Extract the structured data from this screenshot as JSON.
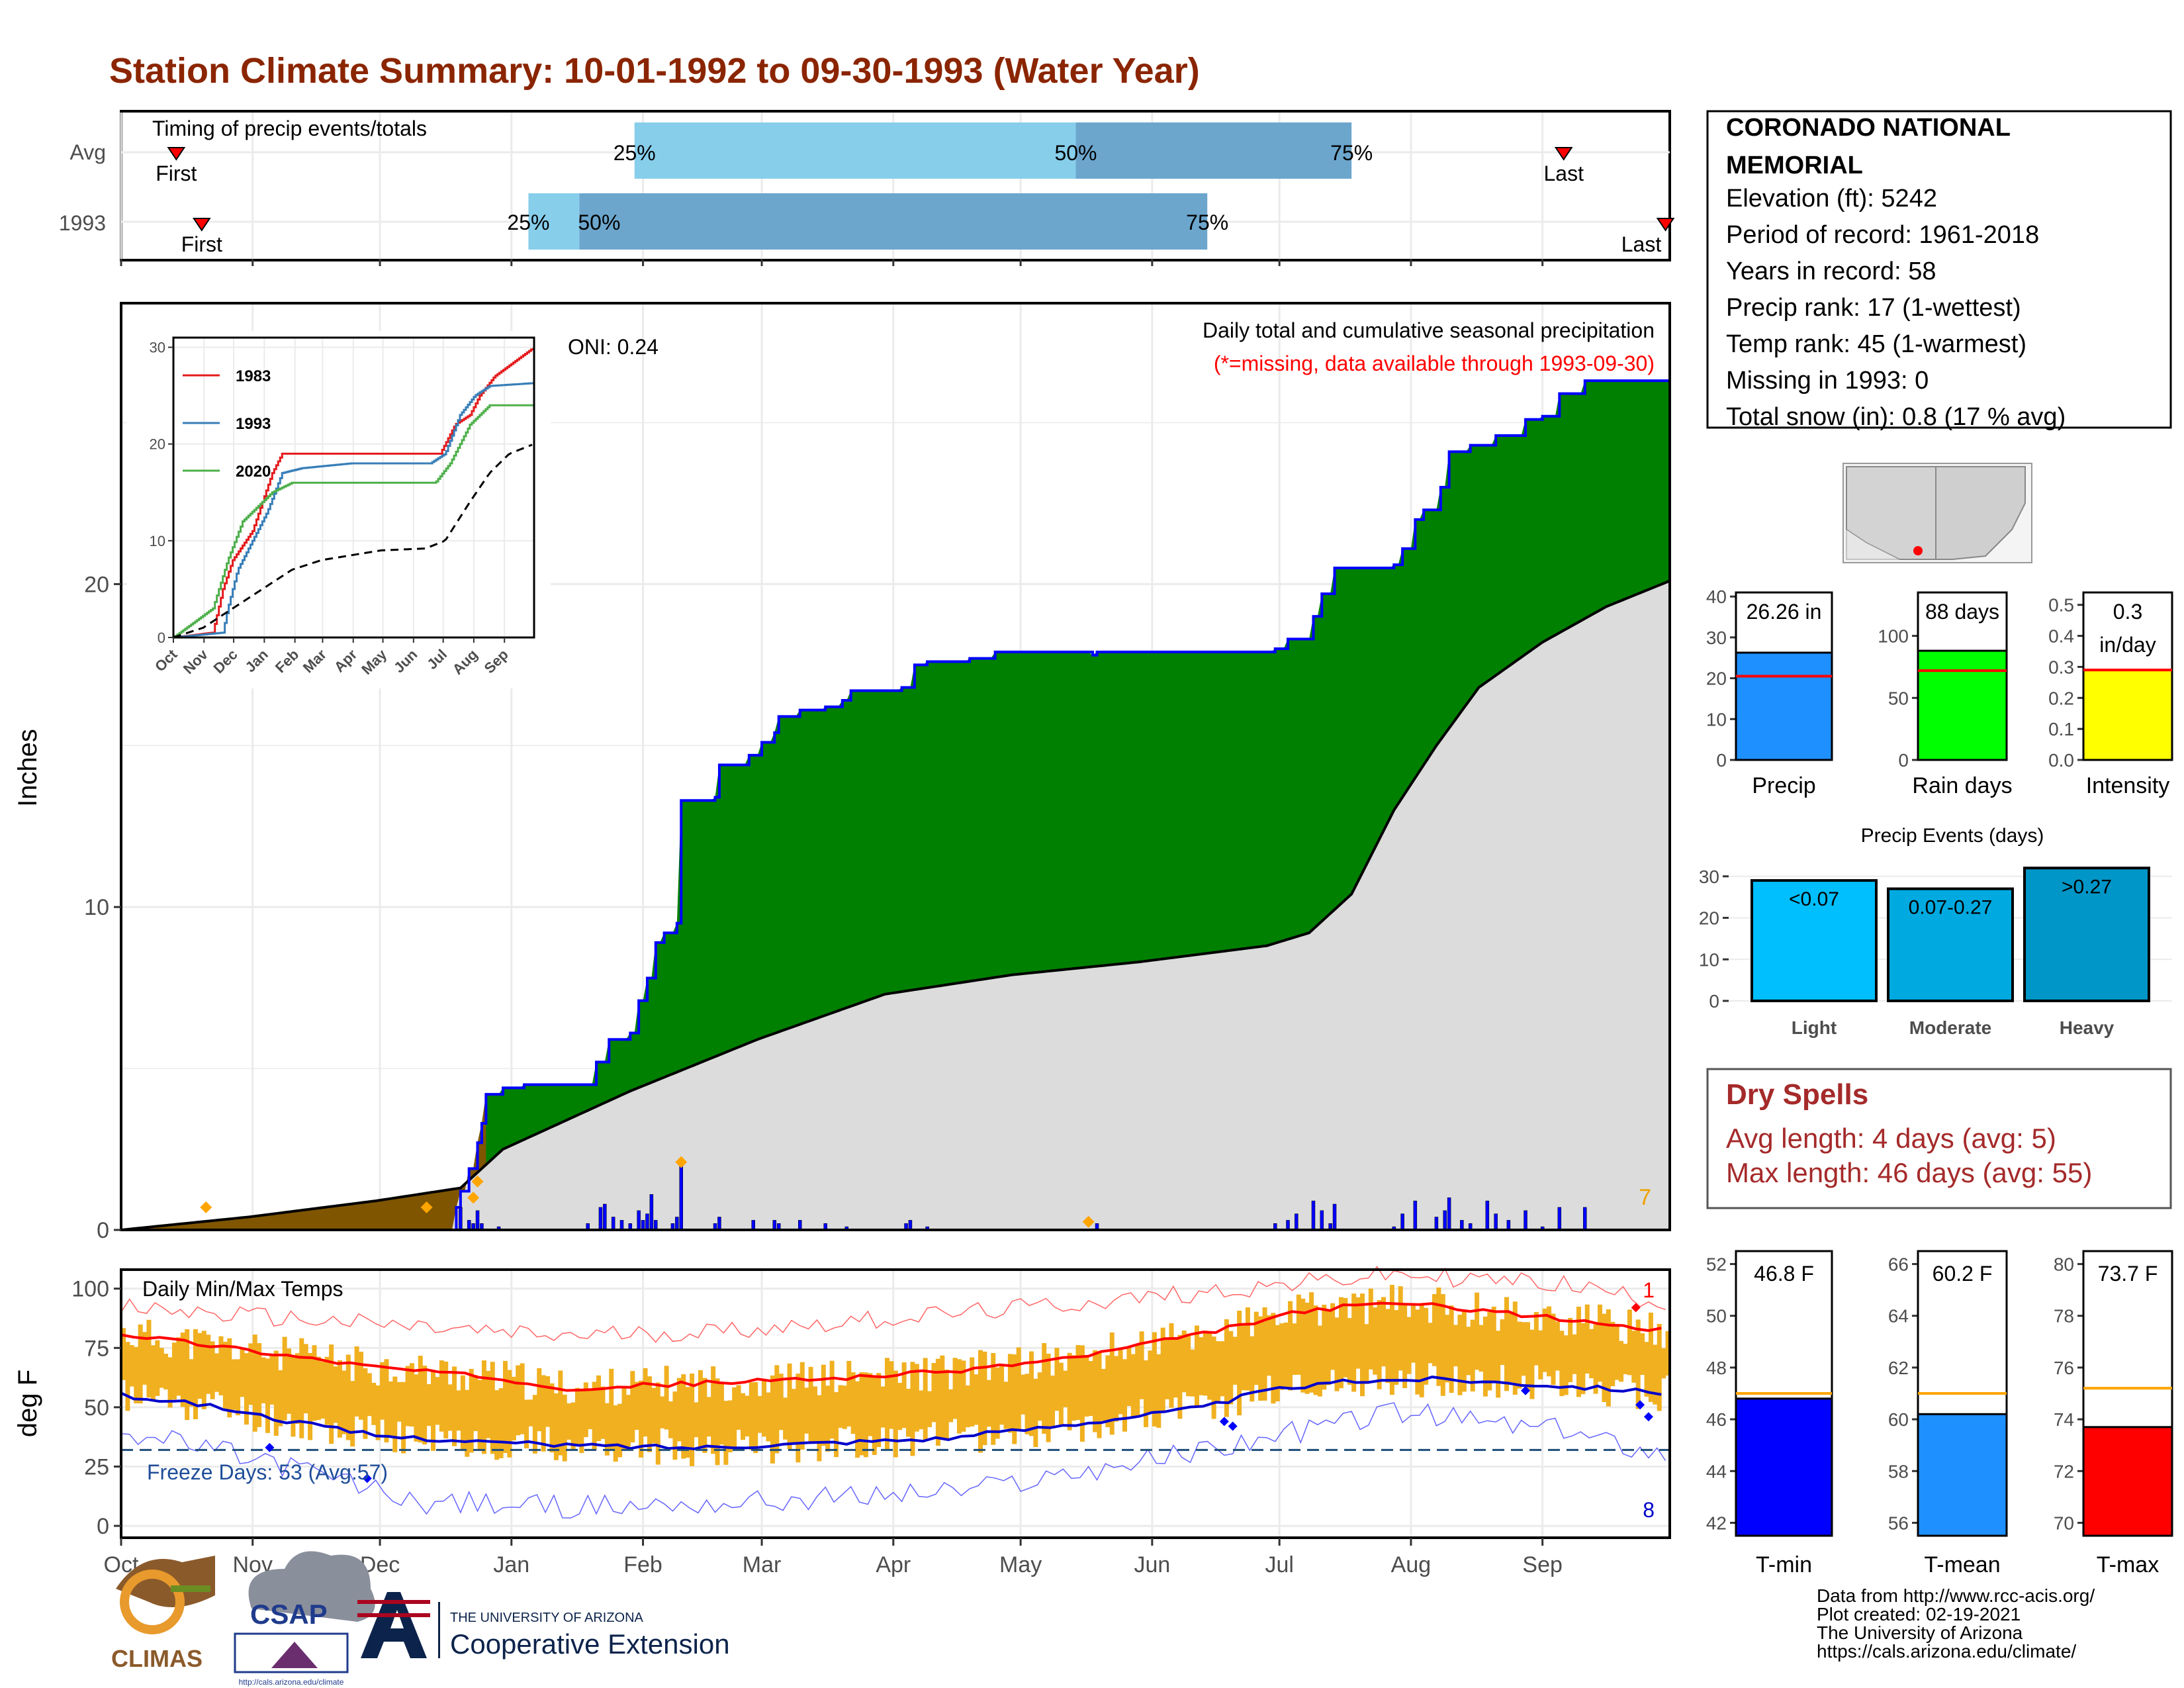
{
  "title": "Station Climate Summary: 10-01-1992 to 09-30-1993 (Water Year)",
  "colors": {
    "title": "#8B2500",
    "green": "#008000",
    "brown": "#7F5500",
    "grey": "#DCDCDC",
    "blue": "#0000FF",
    "orange": "#F0B020",
    "red": "#FF0000",
    "light_blue": "#87CEEB",
    "mid_blue": "#6CA6CD",
    "dry_red": "#A52A2A"
  },
  "timing": {
    "panel_label": "Timing of precip events/totals",
    "rows": [
      {
        "label": "Avg",
        "first": "First",
        "last": "Last",
        "p25": "25%",
        "p50": "50%",
        "p75": "75%",
        "first_day": 13,
        "p25_day": 121,
        "p50_day": 225,
        "p75_day": 290,
        "last_day": 340
      },
      {
        "label": "1993",
        "first": "First",
        "last": "Last",
        "p25": "25%",
        "p50": "50%",
        "p75": "75%",
        "first_day": 19,
        "p25_day": 96,
        "p50_day": 108,
        "p75_day": 256,
        "last_day": 367
      }
    ]
  },
  "station": {
    "name_line1": "CORONADO NATIONAL",
    "name_line2": "MEMORIAL",
    "elevation": "Elevation (ft): 5242",
    "period": "Period of record: 1961-2018",
    "years": "Years in record: 58",
    "precip_rank": "Precip rank: 17 (1-wettest)",
    "temp_rank": "Temp rank: 45 (1-warmest)",
    "missing": "Missing in 1993: 0",
    "snow": "Total snow (in): 0.8 (17 % avg)"
  },
  "main_precip": {
    "ylabel": "Inches",
    "title": "Daily total and cumulative seasonal precipitation",
    "missing_note": "(*=missing, data available through 1993-09-30)",
    "oni": "ONI: 0.24",
    "count_label": "7",
    "yticks": [
      "0",
      "10",
      "20"
    ]
  },
  "inset": {
    "xticks": [
      "Oct",
      "Nov",
      "Dec",
      "Jan",
      "Feb",
      "Mar",
      "Apr",
      "May",
      "Jun",
      "Jul",
      "Aug",
      "Sep"
    ],
    "yticks": [
      "0",
      "10",
      "20",
      "30"
    ],
    "legend": [
      {
        "name": "1983",
        "color": "#E41A1C"
      },
      {
        "name": "1993",
        "color": "#377EB8"
      },
      {
        "name": "2020",
        "color": "#4DAF4A"
      }
    ]
  },
  "temps": {
    "panel_label": "Daily Min/Max Temps",
    "ylabel": "deg F",
    "freeze": "Freeze Days: 53 (Avg:57)",
    "count_hi": "1",
    "count_lo": "8",
    "yticks": [
      "0",
      "25",
      "50",
      "75",
      "100"
    ]
  },
  "x_months": [
    "Oct",
    "Nov",
    "Dec",
    "Jan",
    "Feb",
    "Mar",
    "Apr",
    "May",
    "Jun",
    "Jul",
    "Aug",
    "Sep"
  ],
  "summary_bars": {
    "precip": {
      "label": "Precip",
      "value_label": "26.26 in",
      "value": 26.26,
      "avg": 20.5,
      "yticks": [
        "0",
        "10",
        "20",
        "30",
        "40"
      ],
      "color": "#1E90FF"
    },
    "rain_days": {
      "label": "Rain days",
      "value_label": "88 days",
      "value": 88,
      "avg": 72,
      "yticks": [
        "0",
        "50",
        "100"
      ],
      "color": "#00FF00"
    },
    "intensity": {
      "label": "Intensity",
      "value_label_1": "0.3",
      "value_label_2": "in/day",
      "value": 0.29,
      "avg": 0.29,
      "yticks": [
        "0.0",
        "0.1",
        "0.2",
        "0.3",
        "0.4",
        "0.5"
      ],
      "color": "#FFFF00"
    }
  },
  "precip_events": {
    "title": "Precip Events (days)",
    "yticks": [
      "0",
      "10",
      "20",
      "30"
    ],
    "bars": [
      {
        "label": "Light",
        "value_label": "<0.07",
        "value": 29,
        "color": "#00BFFF"
      },
      {
        "label": "Moderate",
        "value_label": "0.07-0.27",
        "value": 27,
        "color": "#00AAE0"
      },
      {
        "label": "Heavy",
        "value_label": ">0.27",
        "value": 32,
        "color": "#0096C8"
      }
    ]
  },
  "dry_spells": {
    "title": "Dry Spells",
    "avg_length": "Avg length: 4 days (avg: 5)",
    "max_length": "Max length: 46 days (avg: 55)"
  },
  "temp_bars": [
    {
      "label": "T-min",
      "value_label": "46.8 F",
      "value": 46.8,
      "avg": 47.0,
      "ymin": 41.5,
      "ymax": 52.5,
      "yticks": [
        "42",
        "44",
        "46",
        "48",
        "50",
        "52"
      ],
      "color": "#0000FF"
    },
    {
      "label": "T-mean",
      "value_label": "60.2 F",
      "value": 60.2,
      "avg": 61.0,
      "ymin": 55.5,
      "ymax": 66.5,
      "yticks": [
        "56",
        "58",
        "60",
        "62",
        "64",
        "66"
      ],
      "color": "#1E90FF"
    },
    {
      "label": "T-max",
      "value_label": "73.7 F",
      "value": 73.7,
      "avg": 75.2,
      "ymin": 69.5,
      "ymax": 80.5,
      "yticks": [
        "70",
        "72",
        "74",
        "76",
        "78",
        "80"
      ],
      "color": "#FF0000"
    }
  ],
  "credits": {
    "line1": "Data from http://www.rcc-acis.org/",
    "line2": "Plot created: 02-19-2021",
    "line3": "The University of Arizona",
    "line4": "https://cals.arizona.edu/climate/"
  },
  "logos": {
    "climas": "CLIMAS",
    "csap": "CSAP",
    "csap_url": "http://cals.arizona.edu/climate",
    "ua_small": "THE UNIVERSITY OF ARIZONA",
    "ua_big": "Cooperative Extension"
  },
  "chart_data": [
    {
      "type": "area",
      "title": "Daily total and cumulative seasonal precipitation",
      "ylabel": "Inches",
      "ylim": [
        0,
        28
      ],
      "cumulative_1993_knots": [
        [
          0,
          0
        ],
        [
          79,
          0.7
        ],
        [
          80,
          1.2
        ],
        [
          82,
          1.9
        ],
        [
          84,
          2.7
        ],
        [
          85,
          3.3
        ],
        [
          86,
          4.2
        ],
        [
          90,
          4.4
        ],
        [
          95,
          4.5
        ],
        [
          110,
          4.5
        ],
        [
          112,
          5.2
        ],
        [
          115,
          5.9
        ],
        [
          120,
          6.1
        ],
        [
          122,
          7.1
        ],
        [
          124,
          7.8
        ],
        [
          126,
          8.9
        ],
        [
          128,
          9.2
        ],
        [
          131,
          9.5
        ],
        [
          132,
          13.3
        ],
        [
          140,
          13.4
        ],
        [
          141,
          14.4
        ],
        [
          148,
          14.7
        ],
        [
          151,
          15.1
        ],
        [
          154,
          15.4
        ],
        [
          155,
          15.9
        ],
        [
          158,
          15.9
        ],
        [
          160,
          16.1
        ],
        [
          166,
          16.2
        ],
        [
          170,
          16.4
        ],
        [
          172,
          16.7
        ],
        [
          184,
          16.8
        ],
        [
          187,
          17.5
        ],
        [
          190,
          17.6
        ],
        [
          200,
          17.7
        ],
        [
          206,
          17.9
        ],
        [
          229,
          17.8
        ],
        [
          230,
          17.9
        ],
        [
          272,
          18.0
        ],
        [
          275,
          18.3
        ],
        [
          281,
          19.0
        ],
        [
          283,
          19.7
        ],
        [
          286,
          20.5
        ],
        [
          300,
          20.6
        ],
        [
          302,
          21.1
        ],
        [
          305,
          22.0
        ],
        [
          307,
          22.3
        ],
        [
          311,
          23.0
        ],
        [
          313,
          24.1
        ],
        [
          318,
          24.3
        ],
        [
          324,
          24.6
        ],
        [
          331,
          25.1
        ],
        [
          335,
          25.2
        ],
        [
          339,
          25.9
        ],
        [
          345,
          26.3
        ],
        [
          365,
          26.3
        ]
      ],
      "average_cumulative_knots": [
        [
          0,
          0
        ],
        [
          30,
          0.4
        ],
        [
          60,
          0.9
        ],
        [
          80,
          1.3
        ],
        [
          90,
          2.5
        ],
        [
          120,
          4.3
        ],
        [
          150,
          5.9
        ],
        [
          180,
          7.3
        ],
        [
          210,
          7.9
        ],
        [
          240,
          8.3
        ],
        [
          270,
          8.8
        ],
        [
          280,
          9.2
        ],
        [
          290,
          10.4
        ],
        [
          300,
          13.0
        ],
        [
          310,
          15.0
        ],
        [
          320,
          16.8
        ],
        [
          335,
          18.2
        ],
        [
          350,
          19.3
        ],
        [
          365,
          20.1
        ]
      ],
      "daily_precip": [
        [
          80,
          0.7
        ],
        [
          82,
          0.3
        ],
        [
          83,
          0.2
        ],
        [
          84,
          0.6
        ],
        [
          85,
          0.2
        ],
        [
          89,
          0.1
        ],
        [
          110,
          0.2
        ],
        [
          113,
          0.7
        ],
        [
          114,
          0.8
        ],
        [
          116,
          0.4
        ],
        [
          118,
          0.3
        ],
        [
          120,
          0.2
        ],
        [
          122,
          0.6
        ],
        [
          123,
          0.3
        ],
        [
          124,
          0.5
        ],
        [
          125,
          1.1
        ],
        [
          126,
          0.3
        ],
        [
          130,
          0.2
        ],
        [
          131,
          0.4
        ],
        [
          132,
          0.4
        ],
        [
          132,
          2.0
        ],
        [
          140,
          0.2
        ],
        [
          141,
          0.4
        ],
        [
          149,
          0.3
        ],
        [
          154,
          0.3
        ],
        [
          155,
          0.2
        ],
        [
          160,
          0.3
        ],
        [
          166,
          0.2
        ],
        [
          171,
          0.1
        ],
        [
          185,
          0.2
        ],
        [
          186,
          0.3
        ],
        [
          190,
          0.1
        ],
        [
          230,
          0.2
        ],
        [
          272,
          0.2
        ],
        [
          275,
          0.3
        ],
        [
          277,
          0.5
        ],
        [
          281,
          0.9
        ],
        [
          283,
          0.6
        ],
        [
          285,
          0.2
        ],
        [
          286,
          0.8
        ],
        [
          300,
          0.1
        ],
        [
          302,
          0.5
        ],
        [
          305,
          0.9
        ],
        [
          310,
          0.4
        ],
        [
          312,
          0.6
        ],
        [
          313,
          1.0
        ],
        [
          316,
          0.3
        ],
        [
          318,
          0.2
        ],
        [
          322,
          0.9
        ],
        [
          324,
          0.5
        ],
        [
          327,
          0.3
        ],
        [
          331,
          0.6
        ],
        [
          335,
          0.1
        ],
        [
          339,
          0.7
        ],
        [
          345,
          0.7
        ]
      ]
    },
    {
      "type": "line",
      "title": "",
      "categories": [
        "Oct",
        "Nov",
        "Dec",
        "Jan",
        "Feb",
        "Mar",
        "Apr",
        "May",
        "Jun",
        "Jul",
        "Aug",
        "Sep"
      ],
      "ylim": [
        0,
        30
      ],
      "series": [
        {
          "name": "1983",
          "values_by_day": [
            [
              0,
              0
            ],
            [
              40,
              0.5
            ],
            [
              50,
              5
            ],
            [
              60,
              8
            ],
            [
              80,
              11
            ],
            [
              90,
              14
            ],
            [
              100,
              17
            ],
            [
              110,
              19
            ],
            [
              120,
              19
            ],
            [
              200,
              19
            ],
            [
              270,
              19
            ],
            [
              285,
              22
            ],
            [
              300,
              23
            ],
            [
              310,
              25
            ],
            [
              325,
              27
            ],
            [
              365,
              30
            ]
          ]
        },
        {
          "name": "1993",
          "values_by_day": [
            [
              0,
              0
            ],
            [
              50,
              0.5
            ],
            [
              55,
              3
            ],
            [
              65,
              7
            ],
            [
              80,
              10
            ],
            [
              95,
              13
            ],
            [
              110,
              17
            ],
            [
              130,
              17.5
            ],
            [
              180,
              18
            ],
            [
              260,
              18
            ],
            [
              275,
              19
            ],
            [
              290,
              23
            ],
            [
              305,
              25
            ],
            [
              320,
              26
            ],
            [
              365,
              26.3
            ]
          ]
        },
        {
          "name": "2020",
          "values_by_day": [
            [
              0,
              0
            ],
            [
              40,
              3
            ],
            [
              55,
              8
            ],
            [
              70,
              12
            ],
            [
              90,
              14
            ],
            [
              100,
              15
            ],
            [
              120,
              16
            ],
            [
              200,
              16
            ],
            [
              265,
              16
            ],
            [
              280,
              18
            ],
            [
              300,
              22
            ],
            [
              320,
              24
            ],
            [
              340,
              24
            ],
            [
              365,
              24
            ]
          ]
        },
        {
          "name": "",
          "values_by_day": [
            [
              0,
              0
            ],
            [
              30,
              1
            ],
            [
              60,
              3
            ],
            [
              90,
              5
            ],
            [
              120,
              7
            ],
            [
              150,
              8
            ],
            [
              180,
              8.5
            ],
            [
              210,
              9
            ],
            [
              255,
              9.2
            ],
            [
              275,
              10
            ],
            [
              300,
              14
            ],
            [
              320,
              17
            ],
            [
              340,
              19
            ],
            [
              365,
              20
            ]
          ]
        }
      ]
    },
    {
      "type": "area",
      "title": "Daily Min/Max Temps",
      "ylabel": "deg F",
      "ylim": [
        -5,
        108
      ],
      "freeze_line": 32,
      "avg_tmax_knots": [
        [
          0,
          81
        ],
        [
          30,
          74
        ],
        [
          60,
          67
        ],
        [
          90,
          62
        ],
        [
          105,
          58
        ],
        [
          135,
          60
        ],
        [
          165,
          62
        ],
        [
          195,
          65
        ],
        [
          225,
          71
        ],
        [
          255,
          81
        ],
        [
          270,
          87
        ],
        [
          280,
          91
        ],
        [
          300,
          94
        ],
        [
          315,
          92
        ],
        [
          345,
          86
        ],
        [
          365,
          82
        ]
      ],
      "avg_tmin_knots": [
        [
          0,
          55
        ],
        [
          20,
          51
        ],
        [
          40,
          44
        ],
        [
          60,
          38
        ],
        [
          90,
          35
        ],
        [
          105,
          34
        ],
        [
          135,
          33
        ],
        [
          165,
          35
        ],
        [
          195,
          37
        ],
        [
          225,
          43
        ],
        [
          255,
          50
        ],
        [
          270,
          57
        ],
        [
          290,
          61
        ],
        [
          310,
          62
        ],
        [
          330,
          60
        ],
        [
          350,
          58
        ],
        [
          365,
          56
        ]
      ],
      "record_max_knots": [
        [
          0,
          92
        ],
        [
          60,
          85
        ],
        [
          100,
          80
        ],
        [
          140,
          82
        ],
        [
          200,
          90
        ],
        [
          240,
          96
        ],
        [
          300,
          106
        ],
        [
          340,
          102
        ],
        [
          365,
          94
        ]
      ],
      "record_min_knots": [
        [
          0,
          40
        ],
        [
          40,
          25
        ],
        [
          70,
          10
        ],
        [
          110,
          8
        ],
        [
          150,
          10
        ],
        [
          200,
          15
        ],
        [
          250,
          30
        ],
        [
          300,
          48
        ],
        [
          340,
          40
        ],
        [
          365,
          30
        ]
      ]
    },
    {
      "type": "bar",
      "title": "Precip Events (days)",
      "categories": [
        "Light",
        "Moderate",
        "Heavy"
      ],
      "values": [
        29,
        27,
        32
      ],
      "ylim": [
        0,
        33
      ]
    }
  ]
}
